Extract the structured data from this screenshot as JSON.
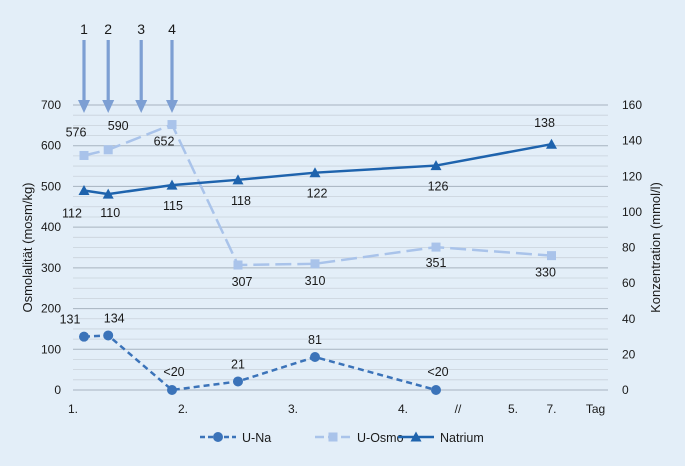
{
  "chart_data": {
    "type": "line",
    "ylabel_left": "Osmolalität (mosm/kg)",
    "ylabel_right": "Konzentration (mmol/l)",
    "ylim_left": [
      0,
      700
    ],
    "ylim_right": [
      0,
      160
    ],
    "yticks_left": [
      "0",
      "100",
      "200",
      "300",
      "400",
      "500",
      "600",
      "700"
    ],
    "yticks_right": [
      "0",
      "20",
      "40",
      "60",
      "80",
      "100",
      "120",
      "140",
      "160"
    ],
    "xticks": [
      {
        "label": "1.",
        "x": 0
      },
      {
        "label": "2.",
        "x": 1
      },
      {
        "label": "3.",
        "x": 2
      },
      {
        "label": "4.",
        "x": 3
      },
      {
        "label": "//",
        "x": 3.5
      },
      {
        "label": "5.",
        "x": 4
      },
      {
        "label": "7.",
        "x": 4.35
      },
      {
        "label": "Tag",
        "x": 4.75
      }
    ],
    "arrows": [
      {
        "label": "1",
        "x": 0.1
      },
      {
        "label": "2",
        "x": 0.32
      },
      {
        "label": "3",
        "x": 0.62
      },
      {
        "label": "4",
        "x": 0.9
      }
    ],
    "series": [
      {
        "name": "U-Na",
        "axis": "left",
        "color": "#3b73b9",
        "marker": "circle",
        "dash": "6,4",
        "points": [
          {
            "x": 0.1,
            "value": 131,
            "label": "131"
          },
          {
            "x": 0.32,
            "value": 134,
            "label": "134"
          },
          {
            "x": 0.9,
            "value": 0,
            "label": "<20"
          },
          {
            "x": 1.5,
            "value": 21,
            "label": "21"
          },
          {
            "x": 2.2,
            "value": 81,
            "label": "81"
          },
          {
            "x": 3.3,
            "value": 0,
            "label": "<20"
          }
        ]
      },
      {
        "name": "U-Osmo",
        "axis": "left",
        "color": "#a9c3ea",
        "marker": "square",
        "dash": "16,6",
        "points": [
          {
            "x": 0.1,
            "value": 576,
            "label": "576"
          },
          {
            "x": 0.32,
            "value": 590,
            "label": "590"
          },
          {
            "x": 0.9,
            "value": 652,
            "label": "652"
          },
          {
            "x": 1.5,
            "value": 307,
            "label": "307"
          },
          {
            "x": 2.2,
            "value": 310,
            "label": "310"
          },
          {
            "x": 3.3,
            "value": 351,
            "label": "351"
          },
          {
            "x": 4.35,
            "value": 330,
            "label": "330"
          }
        ]
      },
      {
        "name": "Natrium",
        "axis": "right",
        "color": "#1e63ad",
        "marker": "triangle",
        "dash": "",
        "points": [
          {
            "x": 0.1,
            "value": 112,
            "label": "112"
          },
          {
            "x": 0.32,
            "value": 110,
            "label": "110"
          },
          {
            "x": 0.9,
            "value": 115,
            "label": "115"
          },
          {
            "x": 1.5,
            "value": 118,
            "label": "118"
          },
          {
            "x": 2.2,
            "value": 122,
            "label": "122"
          },
          {
            "x": 3.3,
            "value": 126,
            "label": "126"
          },
          {
            "x": 4.35,
            "value": 138,
            "label": "138"
          }
        ]
      }
    ],
    "grid": true,
    "legend": "bottom-center"
  }
}
